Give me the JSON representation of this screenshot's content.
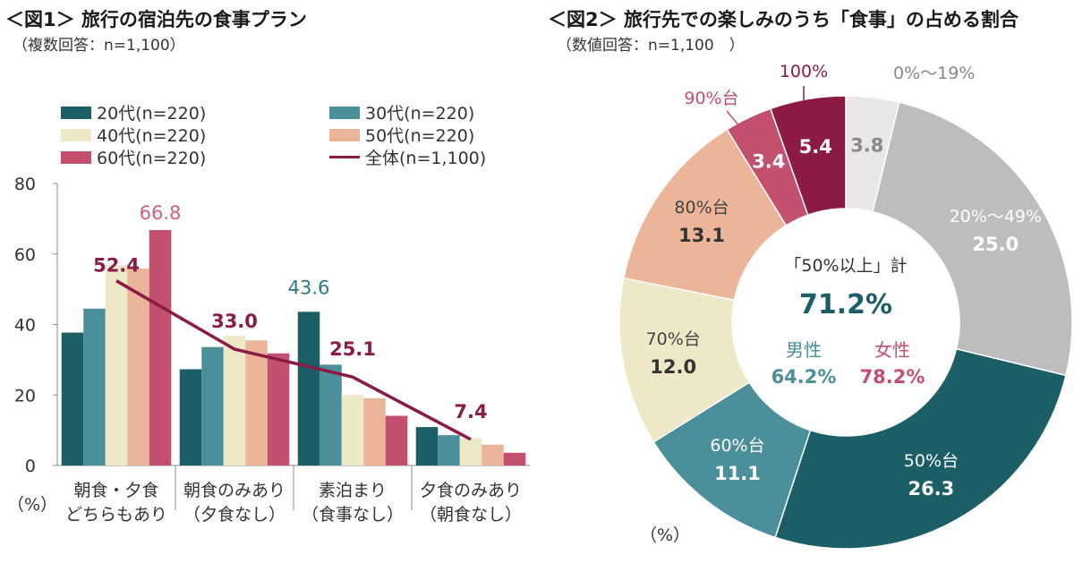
{
  "chart_data": [
    {
      "type": "bar",
      "title": "＜図1＞ 旅行の宿泊先の食事プラン",
      "subtitle": "（複数回答：n=1,100）",
      "unit_label": "（%）",
      "ylim": [
        0,
        80
      ],
      "yticks": [
        "0",
        "20",
        "40",
        "60",
        "80"
      ],
      "categories": [
        [
          "朝食・夕食",
          "どちらもあり"
        ],
        [
          "朝食のみあり",
          "（夕食なし）"
        ],
        [
          "素泊まり",
          "（食事なし）"
        ],
        [
          "夕食のみあり",
          "（朝食なし）"
        ]
      ],
      "series": [
        {
          "name": "20代(n=220)",
          "color": "#1b5e66",
          "values": [
            37.7,
            27.3,
            43.6,
            10.9
          ]
        },
        {
          "name": "30代(n=220)",
          "color": "#4a8f99",
          "values": [
            44.5,
            33.6,
            28.6,
            8.6
          ]
        },
        {
          "name": "40代(n=220)",
          "color": "#ece8c8",
          "values": [
            56.8,
            36.8,
            20.0,
            7.7
          ]
        },
        {
          "name": "50代(n=220)",
          "color": "#ecb59a",
          "values": [
            55.9,
            35.5,
            19.1,
            5.9
          ]
        },
        {
          "name": "60代(n=220)",
          "color": "#c4506f",
          "values": [
            66.8,
            31.8,
            14.1,
            3.6
          ]
        }
      ],
      "total_line": {
        "name": "全体(n=1,100)",
        "color": "#8b1a45",
        "values": [
          52.4,
          33.0,
          25.1,
          7.4
        ]
      },
      "data_labels": [
        {
          "text": "66.8",
          "color": "#d1607f"
        },
        {
          "text": "43.6",
          "color": "#2d7a85"
        },
        {
          "text": "52.4",
          "color": "#8b1a45"
        },
        {
          "text": "33.0",
          "color": "#8b1a45"
        },
        {
          "text": "25.1",
          "color": "#8b1a45"
        },
        {
          "text": "7.4",
          "color": "#8b1a45"
        }
      ]
    },
    {
      "type": "pie",
      "title": "＜図2＞ 旅行先での楽しみのうち「食事」の占める割合",
      "subtitle": "（数値回答：n=1,100　）",
      "unit_label": "（%）",
      "slices": [
        {
          "label": "0%〜19%",
          "value": 3.8,
          "value_text": "3.8",
          "color": "#e8e8e8",
          "label_color": "#888888",
          "value_color": "#888888"
        },
        {
          "label": "20%〜49%",
          "value": 25.0,
          "value_text": "25.0",
          "color": "#bdbdbd",
          "label_color": "#ffffff",
          "value_color": "#ffffff"
        },
        {
          "label": "50%台",
          "value": 26.3,
          "value_text": "26.3",
          "color": "#1b5e66",
          "label_color": "#ffffff",
          "value_color": "#ffffff"
        },
        {
          "label": "60%台",
          "value": 11.1,
          "value_text": "11.1",
          "color": "#4a8f99",
          "label_color": "#ffffff",
          "value_color": "#ffffff"
        },
        {
          "label": "70%台",
          "value": 12.0,
          "value_text": "12.0",
          "color": "#ece8c8",
          "label_color": "#444444",
          "value_color": "#333333"
        },
        {
          "label": "80%台",
          "value": 13.1,
          "value_text": "13.1",
          "color": "#ecb59a",
          "label_color": "#444444",
          "value_color": "#333333"
        },
        {
          "label": "90%台",
          "value": 3.4,
          "value_text": "3.4",
          "color": "#c4506f",
          "label_color": "#c4506f",
          "value_color": "#ffffff"
        },
        {
          "label": "100%",
          "value": 5.4,
          "value_text": "5.4",
          "color": "#8b1a45",
          "label_color": "#8b1a45",
          "value_color": "#ffffff"
        }
      ],
      "center": {
        "heading": "「50%以上」計",
        "total": "71.2%",
        "male_label": "男性",
        "male_value": "64.2%",
        "female_label": "女性",
        "female_value": "78.2%"
      }
    }
  ]
}
